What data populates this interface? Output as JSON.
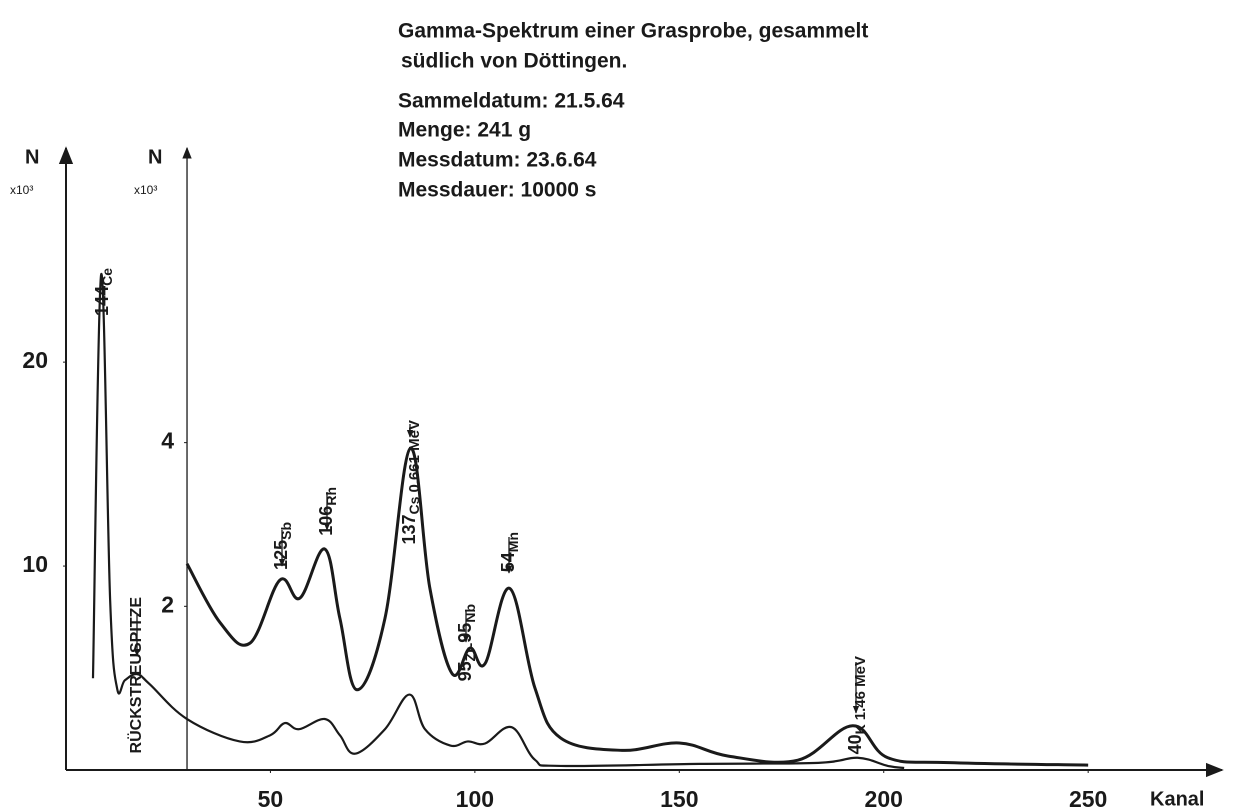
{
  "chart_data": {
    "type": "line",
    "title": [
      "Gamma-Spektrum einer Grasprobe, gesammelt",
      "südlich von Döttingen."
    ],
    "notes": [
      "Sammeldatum: 21.5.64",
      "Menge: 241 g",
      "Messdatum: 23.6.64",
      "Messdauer: 10000 s"
    ],
    "xlabel": "Kanal",
    "ylabel": "N",
    "yunit": "x10³",
    "y2label": "N",
    "y2unit": "x10³",
    "xlim": [
      0,
      282
    ],
    "xticks": [
      50,
      100,
      150,
      200,
      250
    ],
    "ylim": [
      0,
      30.5
    ],
    "yticks": [
      10,
      20
    ],
    "y2lim": [
      0,
      7.6
    ],
    "y2ticks": [
      2,
      4
    ],
    "grid": false,
    "series": [
      {
        "axis": "y",
        "color": "#1a1a1a",
        "x": [
          6.6,
          8.6,
          10.8,
          12.5,
          14.4,
          17.4,
          20.5,
          29.6,
          42.5,
          49.9,
          53.5,
          57,
          63.3,
          67,
          70.7,
          78,
          84,
          87.8,
          94,
          98.3,
          102.5,
          109,
          114.7,
          121,
          155,
          184,
          193.6,
          201,
          205
        ],
        "values": [
          4.5,
          24.3,
          8.3,
          4.0,
          4.4,
          4.7,
          4.2,
          2.5,
          1.4,
          1.7,
          2.3,
          2.0,
          2.5,
          1.7,
          0.8,
          2.0,
          3.7,
          2.0,
          1.2,
          1.4,
          1.3,
          2.1,
          0.5,
          0.2,
          0.3,
          0.35,
          0.6,
          0.2,
          0.1
        ]
      },
      {
        "axis": "y2",
        "color": "#1a1a1a",
        "x": [
          29.6,
          37.7,
          45,
          52.3,
          57.2,
          63.3,
          67,
          71.2,
          78,
          84.2,
          89,
          94.4,
          98.8,
          102.5,
          108.5,
          114.7,
          121,
          136,
          150,
          162,
          179,
          192.4,
          201,
          216,
          250
        ],
        "values": [
          2.52,
          1.8,
          1.55,
          2.32,
          2.1,
          2.7,
          1.85,
          0.98,
          1.85,
          3.93,
          2.22,
          1.18,
          1.49,
          1.3,
          2.22,
          1.0,
          0.39,
          0.24,
          0.33,
          0.17,
          0.12,
          0.54,
          0.15,
          0.09,
          0.06
        ]
      }
    ],
    "annotations": [
      {
        "nuclides": [
          [
            "144",
            "Ce"
          ]
        ]
      },
      {
        "text": "RÜCKSTREUSPITZE"
      },
      {
        "nuclides": [
          [
            "125",
            "Sb"
          ]
        ]
      },
      {
        "nuclides": [
          [
            "106",
            "Rh"
          ]
        ]
      },
      {
        "nuclides": [
          [
            "137",
            "Cs"
          ]
        ],
        "energy": "0.661 MeV"
      },
      {
        "nuclides": [
          [
            "95",
            "Zr-"
          ],
          [
            "95",
            "Nb"
          ]
        ]
      },
      {
        "nuclides": [
          [
            "54",
            "Mn"
          ]
        ]
      },
      {
        "nuclides": [
          [
            "40",
            "K"
          ]
        ],
        "energy": "1.46 MeV"
      }
    ]
  }
}
